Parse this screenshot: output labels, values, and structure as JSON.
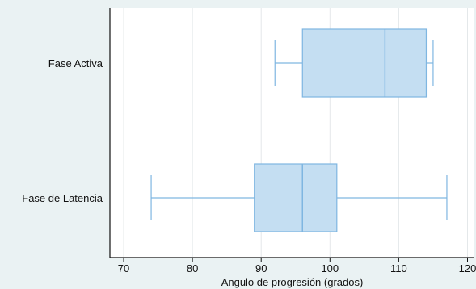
{
  "chart_data": {
    "type": "boxplot",
    "orientation": "horizontal",
    "xlabel": "Angulo de progresión (grados)",
    "xlim": [
      68,
      121
    ],
    "xticks": [
      70,
      80,
      90,
      100,
      110,
      120
    ],
    "grid": true,
    "categories": [
      "Fase Activa",
      "Fase de Latencia"
    ],
    "boxes": [
      {
        "category": "Fase Activa",
        "whisker_low": 92,
        "q1": 96,
        "median": 108,
        "q3": 114,
        "whisker_high": 115
      },
      {
        "category": "Fase de Latencia",
        "whisker_low": 74,
        "q1": 89,
        "median": 96,
        "q3": 101,
        "whisker_high": 117
      }
    ]
  },
  "colors": {
    "outer_background": "#eaf2f3",
    "plot_background": "#ffffff",
    "box_fill": "#c4def2",
    "box_stroke": "#7fb6e1",
    "grid": "#e4e8ea",
    "axis": "#111111"
  }
}
